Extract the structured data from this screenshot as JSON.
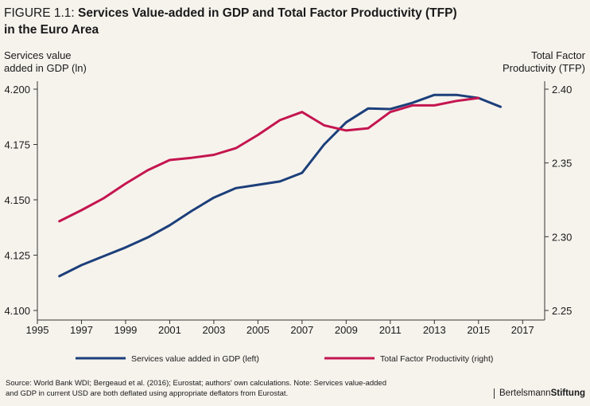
{
  "title": {
    "prefix": "FIGURE 1.1: ",
    "main_line1": "Services Value-added in GDP and Total Factor Productivity (TFP)",
    "main_line2": "in the Euro Area"
  },
  "left_axis_label": {
    "line1": "Services value",
    "line2": "added in GDP (ln)"
  },
  "right_axis_label": {
    "line1": "Total Factor",
    "line2": "Productivity (TFP)"
  },
  "source": {
    "line1": "Source: World Bank WDI; Bergeaud et al. (2016); Eurostat; authors' own calculations. Note: Services value-added",
    "line2": "and GDP in current USD are both deflated using appropriate deflators from Eurostat."
  },
  "brand": {
    "regular": "Bertelsmann",
    "bold": "Stiftung"
  },
  "colors": {
    "services": "#1c3f7a",
    "tfp": "#c4154f",
    "axis": "#333333"
  },
  "chart_data": {
    "type": "line",
    "x_ticks": [
      1995,
      1997,
      1999,
      2001,
      2003,
      2005,
      2007,
      2009,
      2011,
      2013,
      2015,
      2017
    ],
    "xlim": [
      1995,
      2018
    ],
    "y_left": {
      "ticks": [
        "4.100",
        "4.125",
        "4.150",
        "4.175",
        "4.200"
      ],
      "lim": [
        4.1,
        4.2
      ]
    },
    "y_right": {
      "ticks": [
        "2.25",
        "2.30",
        "2.35",
        "2.40"
      ],
      "lim": [
        2.25,
        2.4
      ]
    },
    "series": [
      {
        "name": "Services value added in GDP (left)",
        "axis": "left",
        "x": [
          1996,
          1997,
          1998,
          1999,
          2000,
          2001,
          2002,
          2003,
          2004,
          2005,
          2006,
          2007,
          2008,
          2009,
          2010,
          2011,
          2012,
          2013,
          2014,
          2015,
          2016
        ],
        "values": [
          4.1155,
          4.1205,
          4.1245,
          4.1285,
          4.133,
          4.1385,
          4.145,
          4.151,
          4.1553,
          4.1568,
          4.1583,
          4.1622,
          4.175,
          4.185,
          4.1913,
          4.191,
          4.1938,
          4.1974,
          4.1974,
          4.196,
          4.192
        ]
      },
      {
        "name": "Total Factor Productivity (right)",
        "axis": "right",
        "x": [
          1996,
          1997,
          1998,
          1999,
          2000,
          2001,
          2002,
          2003,
          2004,
          2005,
          2006,
          2007,
          2008,
          2009,
          2010,
          2011,
          2012,
          2013,
          2014,
          2015
        ],
        "values": [
          2.3105,
          2.318,
          2.326,
          2.336,
          2.345,
          2.352,
          2.3535,
          2.3555,
          2.36,
          2.369,
          2.379,
          2.3845,
          2.3755,
          2.372,
          2.3735,
          2.3845,
          2.389,
          2.389,
          2.392,
          2.394
        ]
      }
    ]
  }
}
